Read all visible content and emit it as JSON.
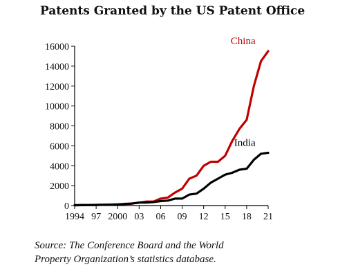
{
  "chart_data": {
    "type": "line",
    "title": "Patents Granted by the US Patent Office",
    "xlabel": "",
    "ylabel": "",
    "x": [
      1994,
      1995,
      1996,
      1997,
      1998,
      1999,
      2000,
      2001,
      2002,
      2003,
      2004,
      2005,
      2006,
      2007,
      2008,
      2009,
      2010,
      2011,
      2012,
      2013,
      2014,
      2015,
      2016,
      2017,
      2018,
      2019,
      2020,
      2021
    ],
    "xlim": [
      1994,
      2021
    ],
    "ylim": [
      0,
      16000
    ],
    "x_ticks": [
      1994,
      1997,
      2000,
      2003,
      2006,
      2009,
      2012,
      2015,
      2018,
      2021
    ],
    "x_tick_labels": [
      "1994",
      "97",
      "2000",
      "03",
      "06",
      "09",
      "12",
      "15",
      "18",
      "21"
    ],
    "y_ticks": [
      0,
      2000,
      4000,
      6000,
      8000,
      10000,
      12000,
      14000,
      16000
    ],
    "y_tick_labels": [
      "0",
      "2000",
      "4000",
      "6000",
      "8000",
      "10000",
      "12000",
      "14000",
      "16000"
    ],
    "grid": false,
    "legend": "labels placed at the end of each line",
    "series": [
      {
        "name": "China",
        "color": "#c00000",
        "values": [
          50,
          60,
          60,
          70,
          80,
          90,
          120,
          170,
          200,
          300,
          400,
          400,
          700,
          800,
          1300,
          1700,
          2700,
          3000,
          4000,
          4400,
          4400,
          5000,
          6500,
          7700,
          8600,
          12000,
          14500,
          15500
        ]
      },
      {
        "name": "India",
        "color": "#000000",
        "values": [
          30,
          40,
          50,
          60,
          80,
          100,
          120,
          150,
          200,
          300,
          300,
          350,
          450,
          500,
          700,
          700,
          1100,
          1200,
          1700,
          2300,
          2700,
          3100,
          3300,
          3600,
          3700,
          4600,
          5200,
          5300
        ]
      }
    ]
  },
  "source": {
    "line1": "Source: The Conference Board and the World",
    "line2": "Property Organization’s statistics database."
  }
}
